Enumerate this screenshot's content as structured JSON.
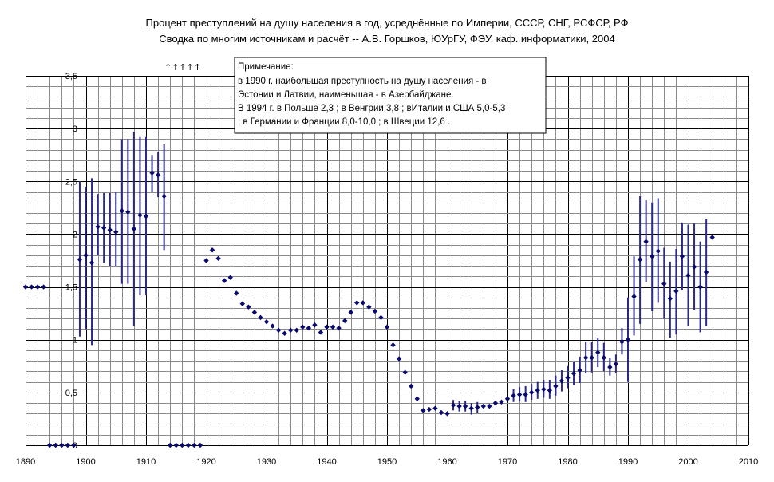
{
  "chart_data": {
    "type": "scatter",
    "title_lines": [
      "Процент преступлений на душу населения в год, усреднённые по Империи, СССР, СНГ,  РСФСР, РФ",
      "Сводка по многим источникам и расчёт -- А.В. Горшков, ЮУрГУ, ФЭУ, каф. информатики, 2004"
    ],
    "xlabel": "",
    "ylabel": "",
    "xlim": [
      1890,
      2010
    ],
    "ylim": [
      0,
      3.5
    ],
    "x_ticks": [
      "1890",
      "1900",
      "1910",
      "1920",
      "1930",
      "1940",
      "1950",
      "1960",
      "1970",
      "1980",
      "1990",
      "2000",
      "2010"
    ],
    "y_ticks": [
      "0",
      "0,5",
      "1",
      "1,5",
      "2",
      "2,5",
      "3",
      "3,5"
    ],
    "grid": true,
    "marker_color": "#0a0a6e",
    "errorbar_color": "#2a2a8a",
    "annotation_arrows": "↑↑↑↑↑",
    "note_lines": [
      "Примечание:",
      "в 1990 г. наибольшая преступность на душу населения - в",
      "Эстонии и Латвии, наименьшая - в Азербайджане.",
      "В 1994 г. в Польше 2,3 ; в Венгрии 3,8 ; вИталии и США 5,0-5,3",
      "; в Германии и Франции 8,0-10,0 ; в Швеции 12,6 ."
    ],
    "points": [
      {
        "x": 1890,
        "y": 1.5
      },
      {
        "x": 1891,
        "y": 1.5
      },
      {
        "x": 1892,
        "y": 1.5
      },
      {
        "x": 1893,
        "y": 1.5
      },
      {
        "x": 1894,
        "y": 0.0
      },
      {
        "x": 1895,
        "y": 0.0
      },
      {
        "x": 1896,
        "y": 0.0
      },
      {
        "x": 1897,
        "y": 0.0
      },
      {
        "x": 1898,
        "y": 0.0
      },
      {
        "x": 1899,
        "y": 1.76,
        "lo": 1.03,
        "hi": 2.5
      },
      {
        "x": 1900,
        "y": 1.8,
        "lo": 1.1,
        "hi": 2.45
      },
      {
        "x": 1901,
        "y": 1.73,
        "lo": 0.95,
        "hi": 2.53
      },
      {
        "x": 1902,
        "y": 2.07,
        "lo": 1.8,
        "hi": 2.38
      },
      {
        "x": 1903,
        "y": 2.06,
        "lo": 1.73,
        "hi": 2.39
      },
      {
        "x": 1904,
        "y": 2.04,
        "lo": 1.7,
        "hi": 2.39
      },
      {
        "x": 1905,
        "y": 2.02,
        "lo": 1.7,
        "hi": 2.4
      },
      {
        "x": 1906,
        "y": 2.22,
        "lo": 1.53,
        "hi": 2.9
      },
      {
        "x": 1907,
        "y": 2.21,
        "lo": 1.53,
        "hi": 2.9
      },
      {
        "x": 1908,
        "y": 2.05,
        "lo": 1.13,
        "hi": 2.97
      },
      {
        "x": 1909,
        "y": 2.18,
        "lo": 1.42,
        "hi": 2.92
      },
      {
        "x": 1910,
        "y": 2.17,
        "lo": 1.42,
        "hi": 2.92
      },
      {
        "x": 1911,
        "y": 2.58,
        "lo": 2.4,
        "hi": 2.75
      },
      {
        "x": 1912,
        "y": 2.56,
        "lo": 2.35,
        "hi": 2.78
      },
      {
        "x": 1913,
        "y": 2.36,
        "lo": 1.85,
        "hi": 2.85
      },
      {
        "x": 1914,
        "y": 0.0
      },
      {
        "x": 1915,
        "y": 0.0
      },
      {
        "x": 1916,
        "y": 0.0
      },
      {
        "x": 1917,
        "y": 0.0
      },
      {
        "x": 1918,
        "y": 0.0
      },
      {
        "x": 1919,
        "y": 0.0
      },
      {
        "x": 1920,
        "y": 1.75
      },
      {
        "x": 1921,
        "y": 1.85
      },
      {
        "x": 1922,
        "y": 1.77
      },
      {
        "x": 1923,
        "y": 1.56
      },
      {
        "x": 1924,
        "y": 1.59
      },
      {
        "x": 1925,
        "y": 1.44
      },
      {
        "x": 1926,
        "y": 1.34
      },
      {
        "x": 1927,
        "y": 1.31
      },
      {
        "x": 1928,
        "y": 1.26
      },
      {
        "x": 1929,
        "y": 1.21
      },
      {
        "x": 1930,
        "y": 1.17
      },
      {
        "x": 1931,
        "y": 1.13
      },
      {
        "x": 1932,
        "y": 1.09
      },
      {
        "x": 1933,
        "y": 1.06
      },
      {
        "x": 1934,
        "y": 1.09
      },
      {
        "x": 1935,
        "y": 1.09
      },
      {
        "x": 1936,
        "y": 1.12
      },
      {
        "x": 1937,
        "y": 1.11
      },
      {
        "x": 1938,
        "y": 1.14
      },
      {
        "x": 1939,
        "y": 1.07
      },
      {
        "x": 1940,
        "y": 1.12
      },
      {
        "x": 1941,
        "y": 1.12
      },
      {
        "x": 1942,
        "y": 1.11
      },
      {
        "x": 1943,
        "y": 1.18
      },
      {
        "x": 1944,
        "y": 1.26
      },
      {
        "x": 1945,
        "y": 1.35
      },
      {
        "x": 1946,
        "y": 1.35
      },
      {
        "x": 1947,
        "y": 1.31
      },
      {
        "x": 1948,
        "y": 1.27
      },
      {
        "x": 1949,
        "y": 1.21
      },
      {
        "x": 1950,
        "y": 1.12
      },
      {
        "x": 1951,
        "y": 0.95
      },
      {
        "x": 1952,
        "y": 0.82
      },
      {
        "x": 1953,
        "y": 0.69
      },
      {
        "x": 1954,
        "y": 0.56
      },
      {
        "x": 1955,
        "y": 0.44
      },
      {
        "x": 1956,
        "y": 0.33
      },
      {
        "x": 1957,
        "y": 0.34
      },
      {
        "x": 1958,
        "y": 0.35
      },
      {
        "x": 1959,
        "y": 0.31
      },
      {
        "x": 1960,
        "y": 0.3
      },
      {
        "x": 1961,
        "y": 0.38,
        "lo": 0.33,
        "hi": 0.43
      },
      {
        "x": 1962,
        "y": 0.37,
        "lo": 0.32,
        "hi": 0.42
      },
      {
        "x": 1963,
        "y": 0.37,
        "lo": 0.32,
        "hi": 0.42
      },
      {
        "x": 1964,
        "y": 0.35,
        "lo": 0.29,
        "hi": 0.4
      },
      {
        "x": 1965,
        "y": 0.36,
        "lo": 0.31,
        "hi": 0.41
      },
      {
        "x": 1966,
        "y": 0.37
      },
      {
        "x": 1967,
        "y": 0.37
      },
      {
        "x": 1968,
        "y": 0.4
      },
      {
        "x": 1969,
        "y": 0.41
      },
      {
        "x": 1970,
        "y": 0.44
      },
      {
        "x": 1971,
        "y": 0.47,
        "lo": 0.41,
        "hi": 0.53
      },
      {
        "x": 1972,
        "y": 0.48,
        "lo": 0.42,
        "hi": 0.55
      },
      {
        "x": 1973,
        "y": 0.48,
        "lo": 0.41,
        "hi": 0.56
      },
      {
        "x": 1974,
        "y": 0.5,
        "lo": 0.43,
        "hi": 0.58
      },
      {
        "x": 1975,
        "y": 0.52,
        "lo": 0.44,
        "hi": 0.6
      },
      {
        "x": 1976,
        "y": 0.53,
        "lo": 0.45,
        "hi": 0.62
      },
      {
        "x": 1977,
        "y": 0.52,
        "lo": 0.44,
        "hi": 0.62
      },
      {
        "x": 1978,
        "y": 0.56,
        "lo": 0.47,
        "hi": 0.66
      },
      {
        "x": 1979,
        "y": 0.61,
        "lo": 0.51,
        "hi": 0.71
      },
      {
        "x": 1980,
        "y": 0.64,
        "lo": 0.54,
        "hi": 0.75
      },
      {
        "x": 1981,
        "y": 0.68,
        "lo": 0.57,
        "hi": 0.79
      },
      {
        "x": 1982,
        "y": 0.71,
        "lo": 0.59,
        "hi": 0.84
      },
      {
        "x": 1983,
        "y": 0.83,
        "lo": 0.68,
        "hi": 0.98
      },
      {
        "x": 1984,
        "y": 0.83,
        "lo": 0.69,
        "hi": 0.98
      },
      {
        "x": 1985,
        "y": 0.88,
        "lo": 0.74,
        "hi": 1.02
      },
      {
        "x": 1986,
        "y": 0.83,
        "lo": 0.7,
        "hi": 0.97
      },
      {
        "x": 1987,
        "y": 0.74,
        "lo": 0.66,
        "hi": 0.83
      },
      {
        "x": 1988,
        "y": 0.77,
        "lo": 0.68,
        "hi": 0.86
      },
      {
        "x": 1989,
        "y": 0.98,
        "lo": 0.86,
        "hi": 1.11
      },
      {
        "x": 1990,
        "y": 1.0,
        "lo": 0.6,
        "hi": 1.4
      },
      {
        "x": 1991,
        "y": 1.41,
        "lo": 1.04,
        "hi": 1.79
      },
      {
        "x": 1992,
        "y": 1.76,
        "lo": 1.15,
        "hi": 2.36
      },
      {
        "x": 1993,
        "y": 1.93,
        "lo": 1.55,
        "hi": 2.32
      },
      {
        "x": 1994,
        "y": 1.79,
        "lo": 1.27,
        "hi": 2.3
      },
      {
        "x": 1995,
        "y": 1.84,
        "lo": 1.35,
        "hi": 2.34
      },
      {
        "x": 1996,
        "y": 1.53,
        "lo": 1.2,
        "hi": 1.87
      },
      {
        "x": 1997,
        "y": 1.39,
        "lo": 1.02,
        "hi": 1.74
      },
      {
        "x": 1998,
        "y": 1.46,
        "lo": 1.05,
        "hi": 1.86
      },
      {
        "x": 1999,
        "y": 1.79,
        "lo": 1.47,
        "hi": 2.11
      },
      {
        "x": 2000,
        "y": 1.61,
        "lo": 1.13,
        "hi": 2.09
      },
      {
        "x": 2001,
        "y": 1.69,
        "lo": 1.28,
        "hi": 2.1
      },
      {
        "x": 2002,
        "y": 1.5,
        "lo": 1.07,
        "hi": 1.93
      },
      {
        "x": 2003,
        "y": 1.64,
        "lo": 1.13,
        "hi": 2.14
      },
      {
        "x": 2004,
        "y": 1.97
      }
    ]
  }
}
